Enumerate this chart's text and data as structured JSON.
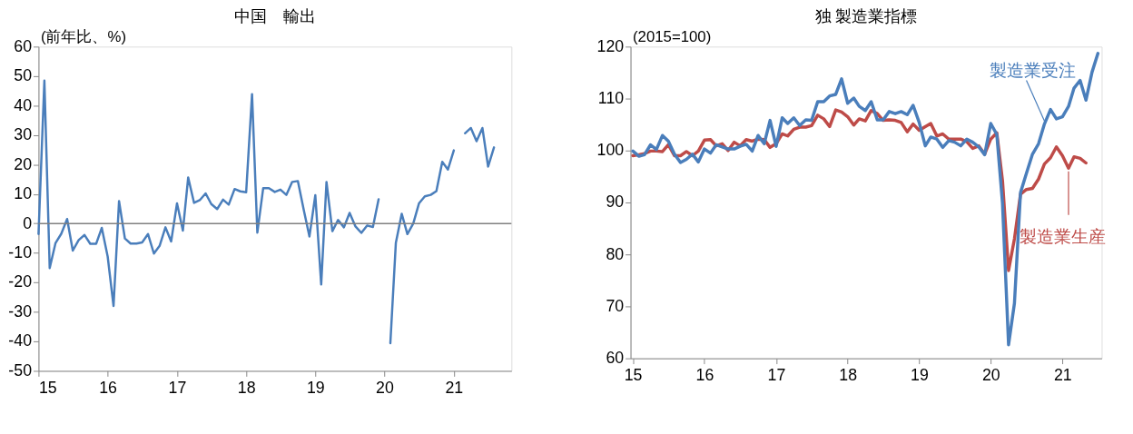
{
  "chart_data": [
    {
      "type": "line",
      "title": "中国　輸出",
      "ylabel": "(前年比、%)",
      "x": [
        "2015-01",
        "2015-02",
        "2015-03",
        "2015-04",
        "2015-05",
        "2015-06",
        "2015-07",
        "2015-08",
        "2015-09",
        "2015-10",
        "2015-11",
        "2015-12",
        "2016-01",
        "2016-02",
        "2016-03",
        "2016-04",
        "2016-05",
        "2016-06",
        "2016-07",
        "2016-08",
        "2016-09",
        "2016-10",
        "2016-11",
        "2016-12",
        "2017-01",
        "2017-02",
        "2017-03",
        "2017-04",
        "2017-05",
        "2017-06",
        "2017-07",
        "2017-08",
        "2017-09",
        "2017-10",
        "2017-11",
        "2017-12",
        "2018-01",
        "2018-02",
        "2018-03",
        "2018-04",
        "2018-05",
        "2018-06",
        "2018-07",
        "2018-08",
        "2018-09",
        "2018-10",
        "2018-11",
        "2018-12",
        "2019-01",
        "2019-02",
        "2019-03",
        "2019-04",
        "2019-05",
        "2019-06",
        "2019-07",
        "2019-08",
        "2019-09",
        "2019-10",
        "2019-11",
        "2019-12",
        "2020-01",
        "2020-02",
        "2020-03",
        "2020-04",
        "2020-05",
        "2020-06",
        "2020-07",
        "2020-08",
        "2020-09",
        "2020-10",
        "2020-11",
        "2020-12",
        "2021-01",
        "2021-02",
        "2021-03",
        "2021-04",
        "2021-05",
        "2021-06",
        "2021-07",
        "2021-08"
      ],
      "series": [
        {
          "color": "#4a7ebb",
          "values": [
            -3.6,
            48.5,
            -15.1,
            -6.6,
            -3.5,
            1.5,
            -9.2,
            -5.6,
            -3.9,
            -6.9,
            -6.9,
            -1.5,
            -11.2,
            -28,
            7.6,
            -5.1,
            -6.8,
            -6.8,
            -6.4,
            -3.6,
            -10.2,
            -7.6,
            -1.3,
            -6.1,
            6.8,
            -2.4,
            15.6,
            7.0,
            7.9,
            10.2,
            6.6,
            4.9,
            8.1,
            6.4,
            11.7,
            10.9,
            10.6,
            43.9,
            -3.1,
            12.0,
            12.0,
            10.7,
            11.5,
            9.7,
            14.1,
            14.4,
            4.6,
            -4.4,
            9.6,
            -20.7,
            14.1,
            -2.6,
            1.2,
            -1.3,
            3.6,
            -1.0,
            -3.2,
            -0.7,
            -1.2,
            8.2,
            null,
            -40.6,
            -6.6,
            3.3,
            -3.6,
            0,
            6.8,
            9.2,
            9.7,
            11.0,
            20.9,
            18.3,
            24.8,
            null,
            30.6,
            32.4,
            27.9,
            32.4,
            19.3,
            25.8
          ]
        }
      ],
      "xlim": [
        "2015-01",
        "2021-11"
      ],
      "xticks": [
        {
          "value": "2015-01",
          "label": "15"
        },
        {
          "value": "2016-01",
          "label": "16"
        },
        {
          "value": "2017-01",
          "label": "17"
        },
        {
          "value": "2018-01",
          "label": "18"
        },
        {
          "value": "2019-01",
          "label": "19"
        },
        {
          "value": "2020-01",
          "label": "20"
        },
        {
          "value": "2021-01",
          "label": "21"
        }
      ],
      "ylim": [
        -50,
        60
      ],
      "yticks": [
        -50,
        -40,
        -30,
        -20,
        -10,
        0,
        10,
        20,
        30,
        40,
        50,
        60
      ],
      "ref_lines": [
        {
          "axis": "y",
          "value": 0,
          "color": "#808080"
        }
      ],
      "grid": false
    },
    {
      "type": "line",
      "title": "独 製造業指標",
      "ylabel": "(2015=100)",
      "x": [
        "2015-01",
        "2015-02",
        "2015-03",
        "2015-04",
        "2015-05",
        "2015-06",
        "2015-07",
        "2015-08",
        "2015-09",
        "2015-10",
        "2015-11",
        "2015-12",
        "2016-01",
        "2016-02",
        "2016-03",
        "2016-04",
        "2016-05",
        "2016-06",
        "2016-07",
        "2016-08",
        "2016-09",
        "2016-10",
        "2016-11",
        "2016-12",
        "2017-01",
        "2017-02",
        "2017-03",
        "2017-04",
        "2017-05",
        "2017-06",
        "2017-07",
        "2017-08",
        "2017-09",
        "2017-10",
        "2017-11",
        "2017-12",
        "2018-01",
        "2018-02",
        "2018-03",
        "2018-04",
        "2018-05",
        "2018-06",
        "2018-07",
        "2018-08",
        "2018-09",
        "2018-10",
        "2018-11",
        "2018-12",
        "2019-01",
        "2019-02",
        "2019-03",
        "2019-04",
        "2019-05",
        "2019-06",
        "2019-07",
        "2019-08",
        "2019-09",
        "2019-10",
        "2019-11",
        "2019-12",
        "2020-01",
        "2020-02",
        "2020-03",
        "2020-04",
        "2020-05",
        "2020-06",
        "2020-07",
        "2020-08",
        "2020-09",
        "2020-10",
        "2020-11",
        "2020-12",
        "2021-01",
        "2021-02",
        "2021-03",
        "2021-04",
        "2021-05",
        "2021-06",
        "2021-07"
      ],
      "series": [
        {
          "name": "製造業生産",
          "color": "#be4b48",
          "values": [
            99.0,
            99.2,
            99.4,
            99.9,
            99.9,
            99.8,
            101.1,
            99.0,
            99.0,
            99.8,
            99.0,
            99.9,
            102.0,
            102.1,
            100.9,
            101.3,
            100.0,
            101.6,
            100.9,
            102.1,
            101.8,
            102.2,
            102.1,
            100.6,
            101.3,
            103.2,
            102.8,
            104.1,
            104.5,
            104.5,
            104.8,
            106.8,
            106.1,
            104.6,
            107.8,
            107.4,
            106.5,
            104.9,
            106.1,
            105.7,
            107.7,
            107.1,
            105.8,
            105.9,
            105.8,
            105.4,
            103.6,
            105.1,
            103.9,
            104.6,
            105.2,
            102.8,
            103.2,
            102.2,
            102.2,
            102.2,
            101.7,
            100.4,
            100.9,
            99.3,
            102.2,
            103.4,
            94.2,
            76.9,
            83.0,
            91.6,
            92.5,
            92.7,
            94.5,
            97.4,
            98.6,
            100.7,
            99.0,
            96.6,
            98.8,
            98.5,
            97.6,
            null,
            null
          ]
        },
        {
          "name": "製造業受注",
          "color": "#4a7ebb",
          "values": [
            99.9,
            98.9,
            99.2,
            101.1,
            100.2,
            102.9,
            101.8,
            99.3,
            97.7,
            98.3,
            99.3,
            97.8,
            100.3,
            99.5,
            101.1,
            100.7,
            100.3,
            100.3,
            100.8,
            101.2,
            99.9,
            102.9,
            101.3,
            105.8,
            100.8,
            106.3,
            105.2,
            106.3,
            104.8,
            105.9,
            105.8,
            109.4,
            109.4,
            110.5,
            110.8,
            113.8,
            109.1,
            110.1,
            108.5,
            107.7,
            109.4,
            105.9,
            105.9,
            107.5,
            107.1,
            107.5,
            106.9,
            108.7,
            105.4,
            100.9,
            102.6,
            102.2,
            100.6,
            101.9,
            101.6,
            100.9,
            102.2,
            101.6,
            100.7,
            99.2,
            105.2,
            103.1,
            89.9,
            62.6,
            70.6,
            91.9,
            95.6,
            99.3,
            101.3,
            105.1,
            107.9,
            106.1,
            106.5,
            108.5,
            112.0,
            113.5,
            109.7,
            115.1,
            118.7
          ]
        }
      ],
      "xlim": [
        "2014-12-20",
        "2021-07-20"
      ],
      "xticks": [
        {
          "value": "2015-01",
          "label": "15"
        },
        {
          "value": "2016-01",
          "label": "16"
        },
        {
          "value": "2017-01",
          "label": "17"
        },
        {
          "value": "2018-01",
          "label": "18"
        },
        {
          "value": "2019-01",
          "label": "19"
        },
        {
          "value": "2020-01",
          "label": "20"
        },
        {
          "value": "2021-01",
          "label": "21"
        }
      ],
      "ylim": [
        60,
        120
      ],
      "yticks": [
        60,
        70,
        80,
        90,
        100,
        110,
        120
      ],
      "grid": false
    }
  ]
}
